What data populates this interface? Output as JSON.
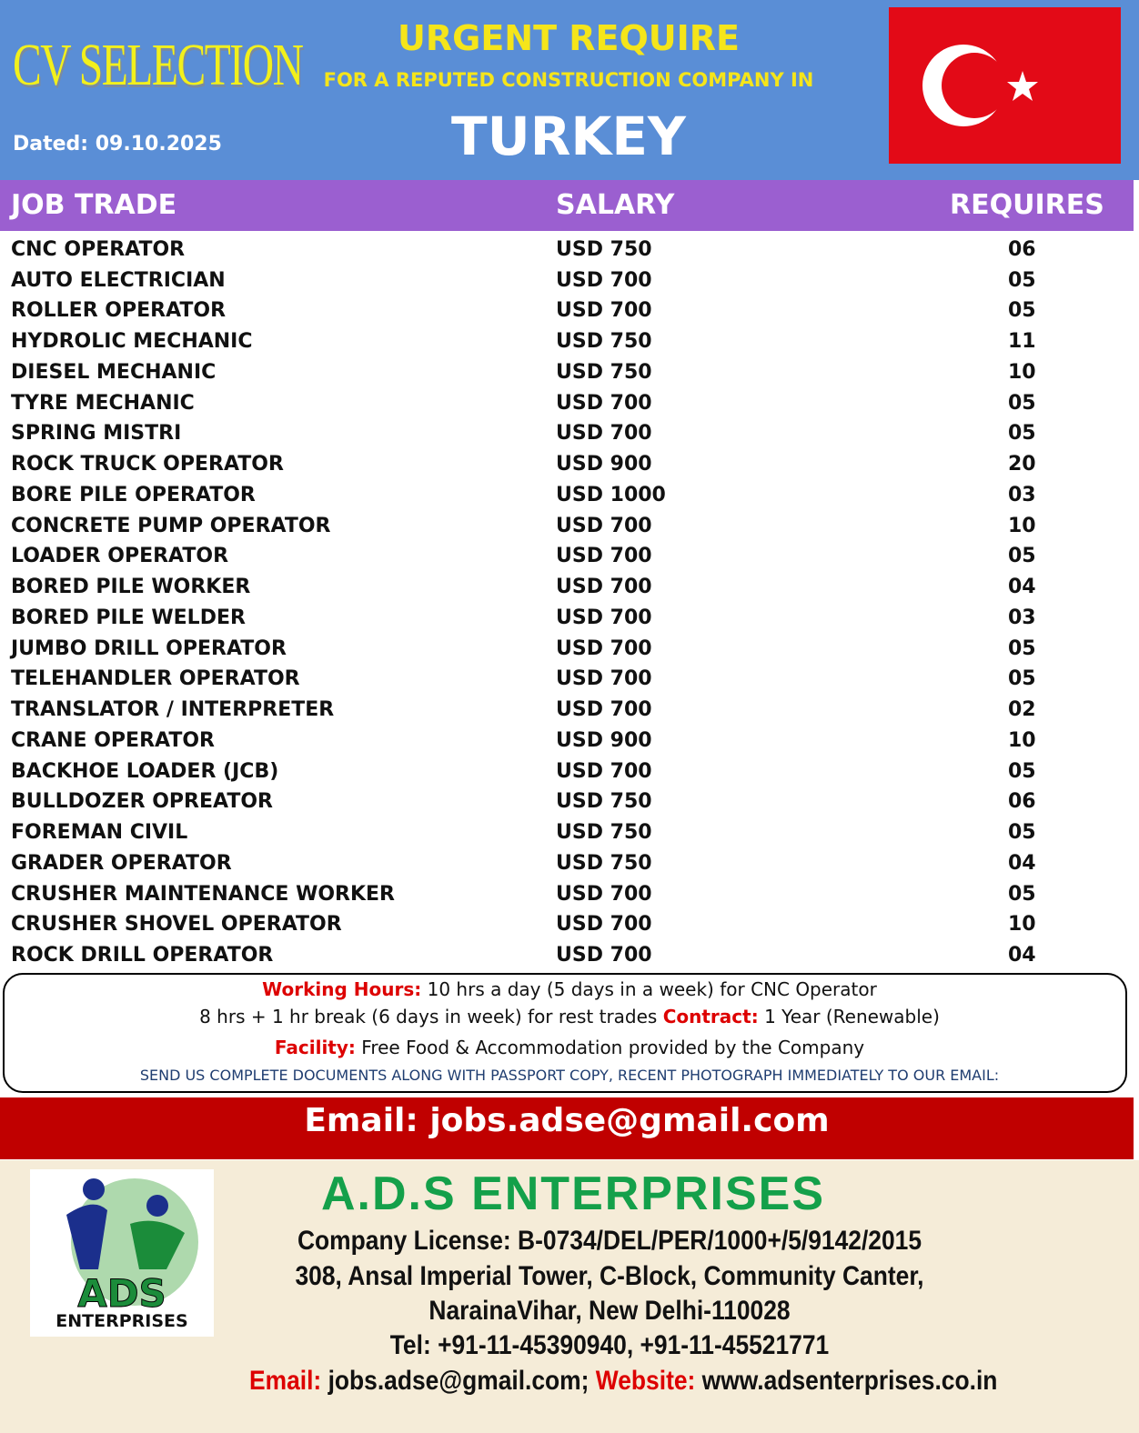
{
  "header": {
    "logo_text": "CV SELECTION",
    "dated": "Dated: 09.10.2025",
    "title": "URGENT REQUIRE",
    "subtitle": "FOR A REPUTED CONSTRUCTION COMPANY IN",
    "country": "TURKEY"
  },
  "table": {
    "columns": [
      "JOB TRADE",
      "SALARY",
      "REQUIRES"
    ],
    "rows": [
      [
        "CNC OPERATOR",
        "USD 750",
        "06"
      ],
      [
        "AUTO ELECTRICIAN",
        "USD 700",
        "05"
      ],
      [
        "ROLLER OPERATOR",
        "USD 700",
        "05"
      ],
      [
        "HYDROLIC MECHANIC",
        "USD 750",
        "11"
      ],
      [
        "DIESEL MECHANIC",
        "USD 750",
        "10"
      ],
      [
        "TYRE MECHANIC",
        "USD 700",
        "05"
      ],
      [
        "SPRING MISTRI",
        "USD 700",
        "05"
      ],
      [
        "ROCK TRUCK OPERATOR",
        "USD 900",
        "20"
      ],
      [
        "BORE PILE OPERATOR",
        "USD 1000",
        "03"
      ],
      [
        "CONCRETE PUMP OPERATOR",
        "USD 700",
        "10"
      ],
      [
        "LOADER OPERATOR",
        "USD 700",
        "05"
      ],
      [
        "BORED PILE WORKER",
        "USD 700",
        "04"
      ],
      [
        "BORED PILE WELDER",
        "USD 700",
        "03"
      ],
      [
        "JUMBO DRILL OPERATOR",
        "USD 700",
        "05"
      ],
      [
        "TELEHANDLER OPERATOR",
        "USD 700",
        "05"
      ],
      [
        "TRANSLATOR / INTERPRETER",
        "USD 700",
        "02"
      ],
      [
        "CRANE OPERATOR",
        "USD 900",
        "10"
      ],
      [
        "BACKHOE LOADER (JCB)",
        "USD 700",
        "05"
      ],
      [
        "BULLDOZER OPREATOR",
        "USD 750",
        "06"
      ],
      [
        "FOREMAN CIVIL",
        "USD 750",
        "05"
      ],
      [
        "GRADER OPERATOR",
        "USD 750",
        "04"
      ],
      [
        "CRUSHER MAINTENANCE WORKER",
        "USD 700",
        "05"
      ],
      [
        "CRUSHER SHOVEL OPERATOR",
        "USD 700",
        "10"
      ],
      [
        "ROCK DRILL OPERATOR",
        "USD 700",
        "04"
      ]
    ]
  },
  "info": {
    "hours_label": "Working Hours:",
    "hours_text": "10 hrs a day (5 days in a week) for CNC Operator",
    "hours_text2": "8 hrs + 1 hr break (6 days in week) for rest trades",
    "contract_label": "Contract:",
    "contract_text": "1 Year (Renewable)",
    "facility_label": "Facility:",
    "facility_text": "Free Food & Accommodation provided by the Company",
    "send_note": "SEND US COMPLETE DOCUMENTS ALONG WITH PASSPORT COPY, RECENT PHOTOGRAPH IMMEDIATELY TO OUR EMAIL:"
  },
  "email_banner": "Email: jobs.adse@gmail.com",
  "company": {
    "logo_main": "ADS",
    "logo_sub": "ENTERPRISES",
    "name": "A.D.S ENTERPRISES",
    "license": "Company License: B-0734/DEL/PER/1000+/5/9142/2015",
    "address1": "308, Ansal Imperial Tower, C-Block, Community Canter,",
    "address2": "NarainaVihar, New Delhi-110028",
    "tel": "Tel: +91-11-45390940, +91-11-45521771",
    "email_label": "Email:",
    "email": "jobs.adse@gmail.com;",
    "website_label": "Website:",
    "website": "www.adsenterprises.co.in"
  }
}
